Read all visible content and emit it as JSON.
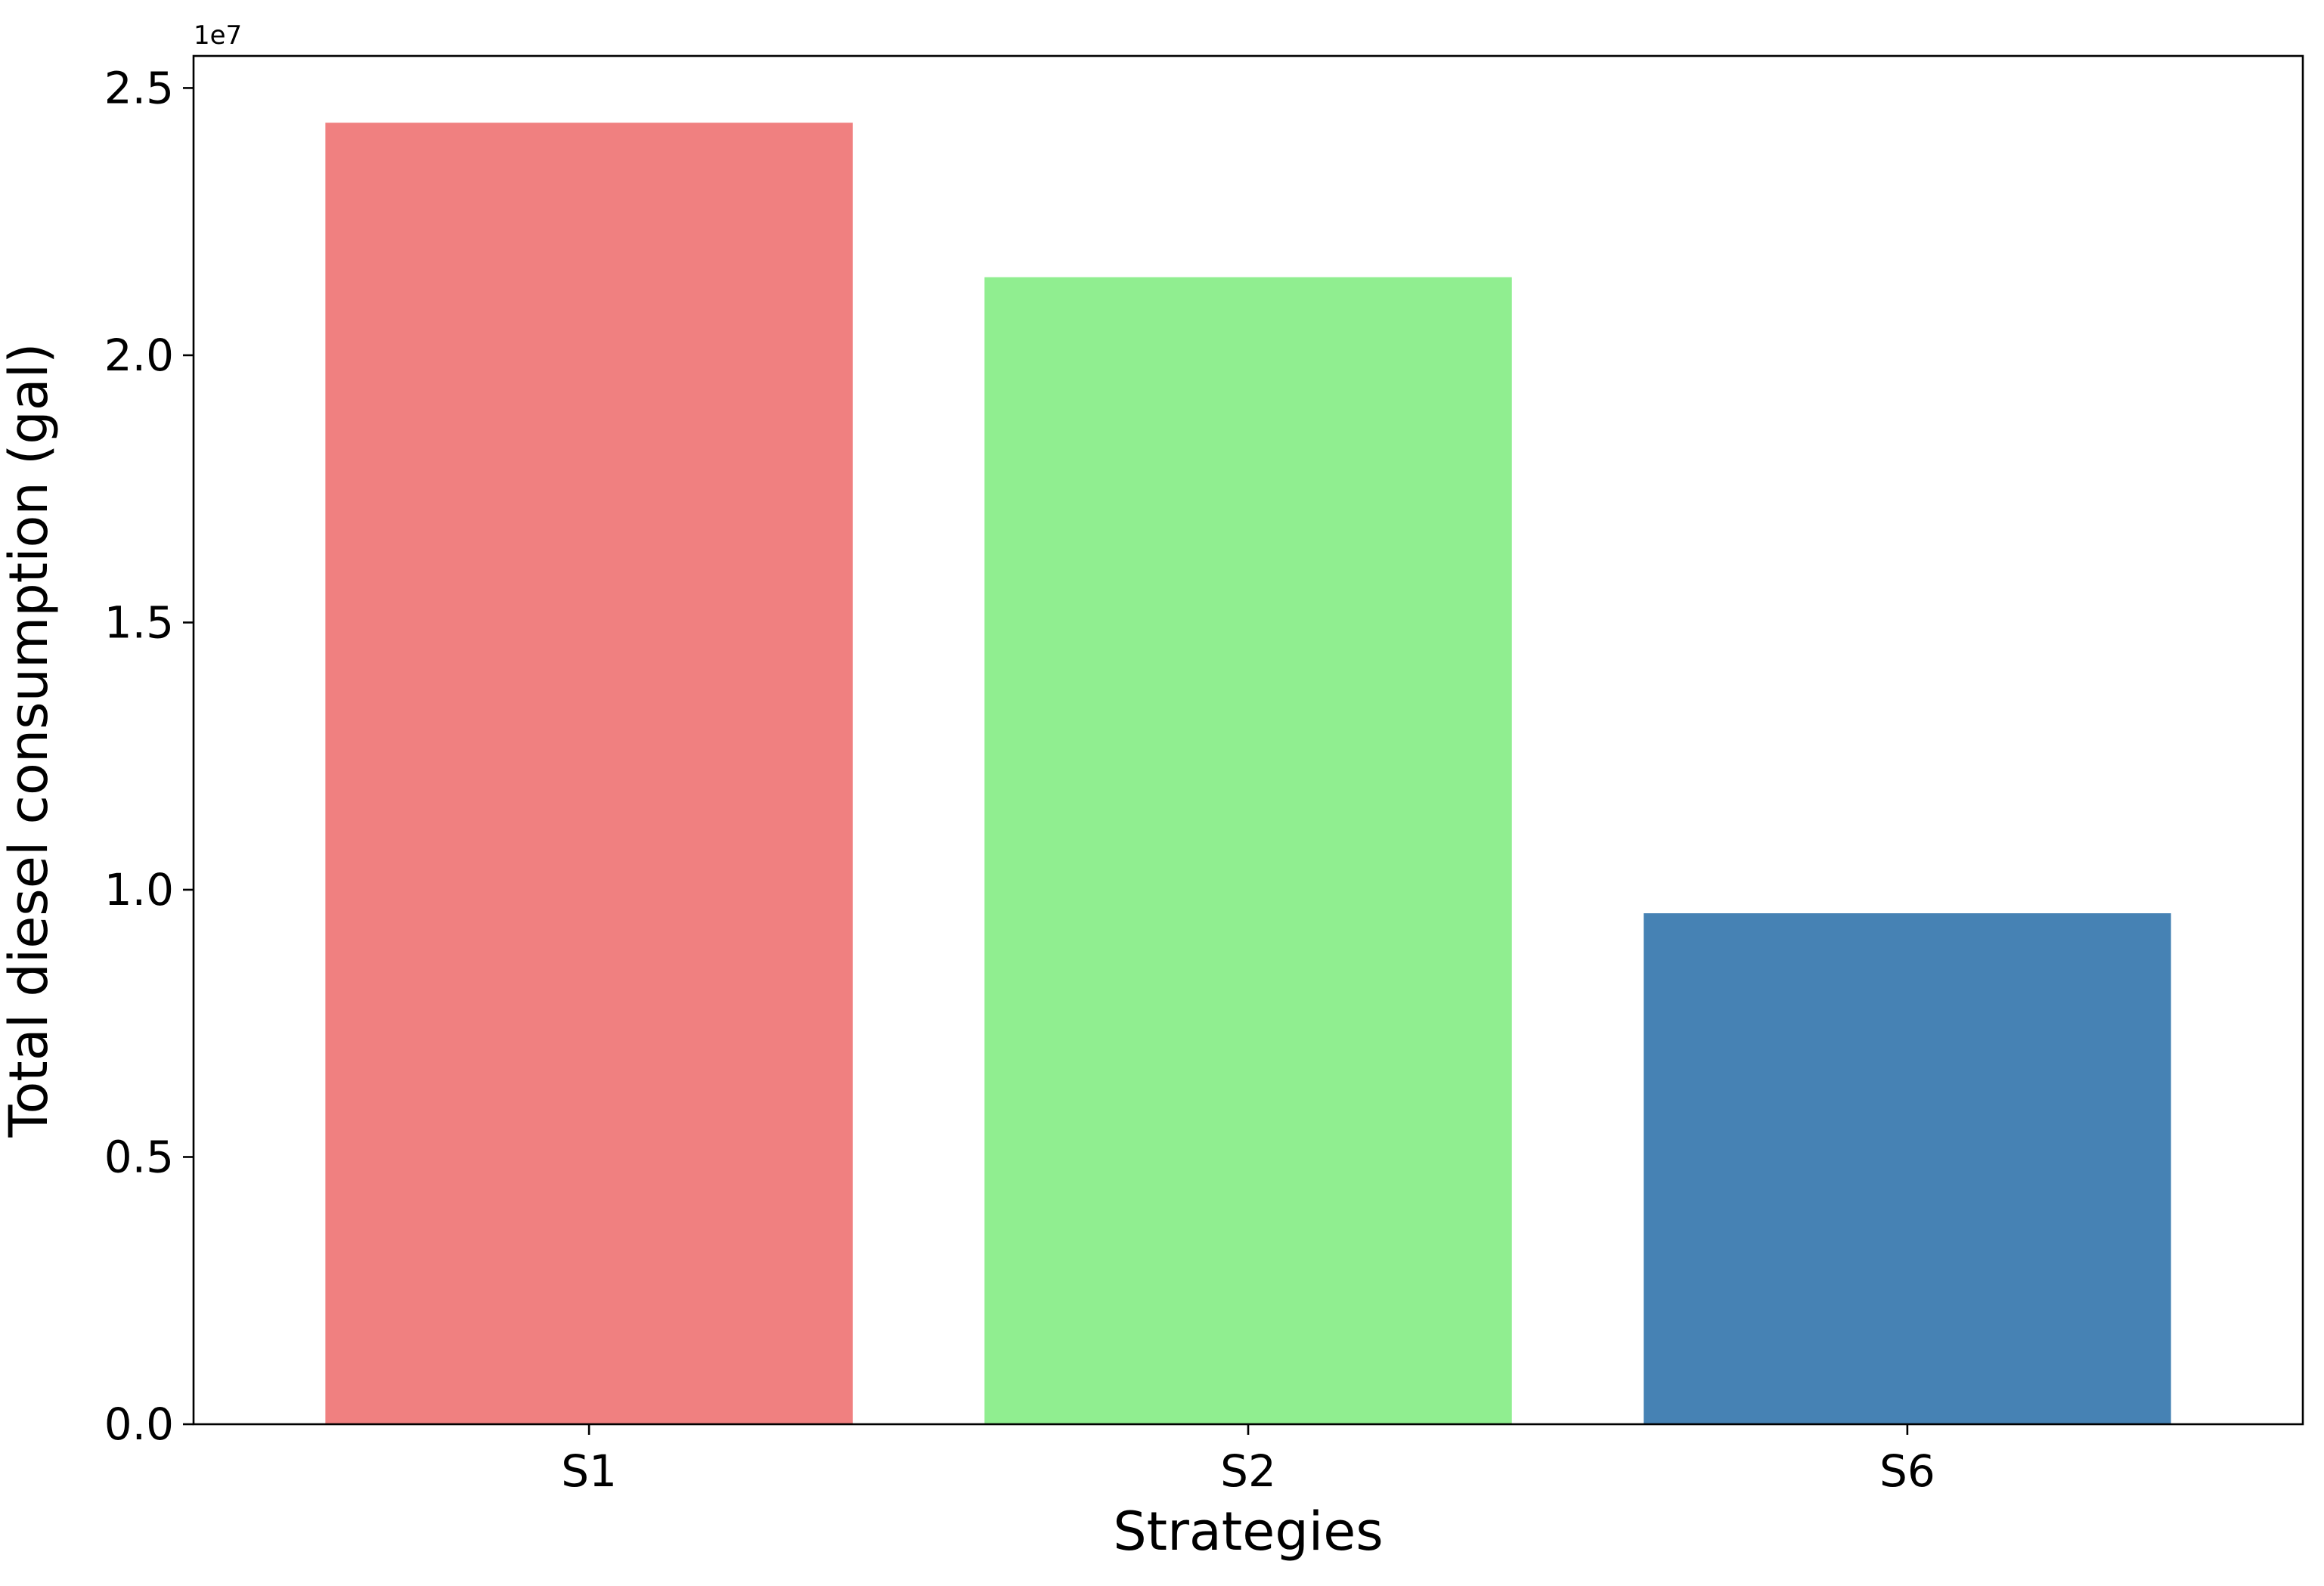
{
  "chart_data": {
    "type": "bar",
    "categories": [
      "S1",
      "S2",
      "S6"
    ],
    "values": [
      24350000,
      21460000,
      9560000
    ],
    "colors": [
      "#f08080",
      "#90ee90",
      "#4682b4"
    ],
    "xlabel": "Strategies",
    "ylabel": "Total diesel consumption (gal)",
    "ylim": [
      0,
      25600000
    ],
    "yticks": [
      0,
      5000000,
      10000000,
      15000000,
      20000000,
      25000000
    ],
    "ytick_labels": [
      "0.0",
      "0.5",
      "1.0",
      "1.5",
      "2.0",
      "2.5"
    ],
    "y_offset_text": "1e7",
    "grid": false,
    "legend": false
  }
}
